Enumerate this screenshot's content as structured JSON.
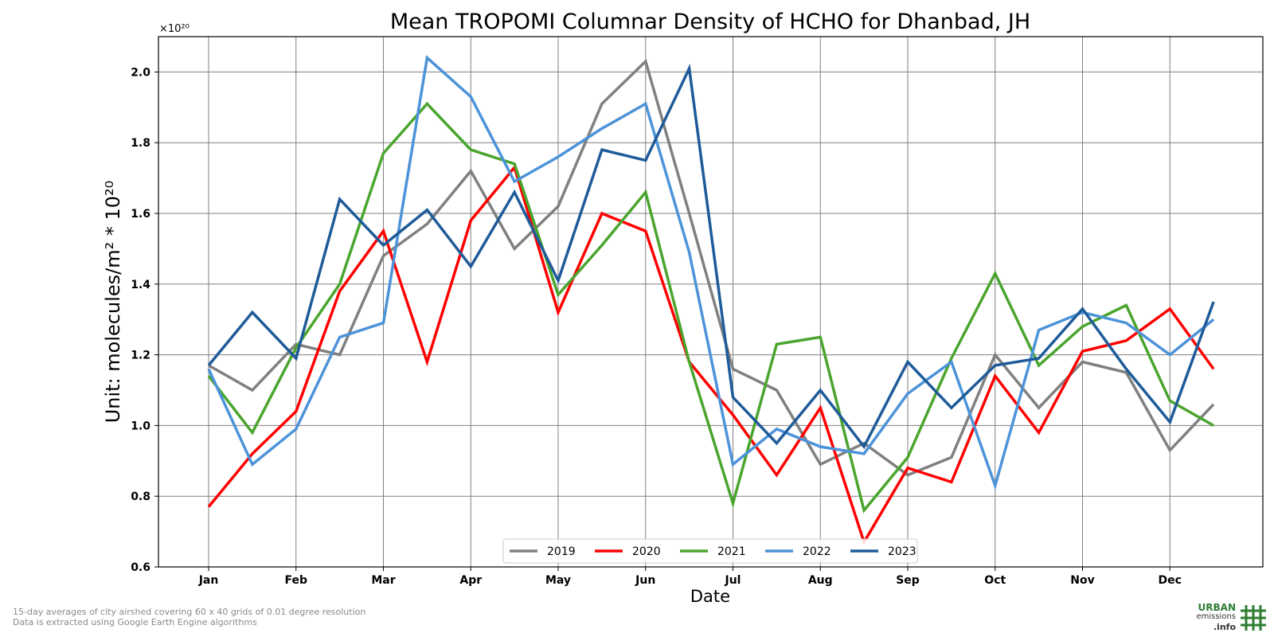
{
  "chart_data": {
    "type": "line",
    "title": "Mean TROPOMI Columnar Density of HCHO for Dhanbad, JH",
    "xlabel": "Date",
    "ylabel": "Unit: molecules/m² * 10²⁰",
    "y_multiplier": "×10²⁰",
    "ylim": [
      0.6,
      2.1
    ],
    "yticks": [
      "0.6",
      "0.8",
      "1.0",
      "1.2",
      "1.4",
      "1.6",
      "1.8",
      "2.0"
    ],
    "xticks": [
      "Jan",
      "Feb",
      "Mar",
      "Apr",
      "May",
      "Jun",
      "Jul",
      "Aug",
      "Sep",
      "Oct",
      "Nov",
      "Dec"
    ],
    "x": [
      "Jan",
      "Jan 15",
      "Feb",
      "Feb 15",
      "Mar",
      "Mar 15",
      "Apr",
      "Apr 15",
      "May",
      "May 15",
      "Jun",
      "Jun 15",
      "Jul",
      "Jul 15",
      "Aug",
      "Aug 15",
      "Sep",
      "Sep 15",
      "Oct",
      "Oct 15",
      "Nov",
      "Nov 15",
      "Dec",
      "Dec 15"
    ],
    "grid": true,
    "legend_position": "bottom-center",
    "series": [
      {
        "name": "2019",
        "color": "#808080",
        "values": [
          1.17,
          1.1,
          1.23,
          1.2,
          1.48,
          1.57,
          1.72,
          1.5,
          1.62,
          1.91,
          2.03,
          1.6,
          1.16,
          1.1,
          0.89,
          0.95,
          0.86,
          0.91,
          1.2,
          1.05,
          1.18,
          1.15,
          0.93,
          1.06
        ]
      },
      {
        "name": "2020",
        "color": "#ff0000",
        "values": [
          0.77,
          0.92,
          1.04,
          1.38,
          1.55,
          1.18,
          1.58,
          1.73,
          1.32,
          1.6,
          1.55,
          1.18,
          1.03,
          0.86,
          1.05,
          0.67,
          0.88,
          0.84,
          1.14,
          0.98,
          1.21,
          1.24,
          1.33,
          1.16
        ]
      },
      {
        "name": "2021",
        "color": "#4aa52e",
        "values": [
          1.14,
          0.98,
          1.22,
          1.4,
          1.77,
          1.91,
          1.78,
          1.74,
          1.37,
          1.51,
          1.66,
          1.18,
          0.78,
          1.23,
          1.25,
          0.76,
          0.91,
          1.19,
          1.43,
          1.17,
          1.28,
          1.34,
          1.07,
          1.0
        ]
      },
      {
        "name": "2022",
        "color": "#4c93d9",
        "values": [
          1.16,
          0.89,
          0.99,
          1.25,
          1.29,
          2.04,
          1.93,
          1.69,
          1.76,
          1.84,
          1.91,
          1.49,
          0.89,
          0.99,
          0.94,
          0.92,
          1.09,
          1.18,
          0.83,
          1.27,
          1.32,
          1.29,
          1.2,
          1.3
        ]
      },
      {
        "name": "2023",
        "color": "#1f5b99",
        "values": [
          1.17,
          1.32,
          1.19,
          1.64,
          1.51,
          1.61,
          1.45,
          1.66,
          1.41,
          1.78,
          1.75,
          2.01,
          1.08,
          0.95,
          1.1,
          0.94,
          1.18,
          1.05,
          1.17,
          1.19,
          1.33,
          1.16,
          1.01,
          1.35
        ]
      }
    ]
  },
  "footer": {
    "note_line1": "15-day averages of city airshed covering 60 x 40 grids of 0.01 degree resolution",
    "note_line2": "Data is extracted using Google Earth Engine algorithms"
  },
  "logo": {
    "line1": "URBAN",
    "line2": "emissions",
    "line3": ".info",
    "color": "#2e7d32"
  }
}
